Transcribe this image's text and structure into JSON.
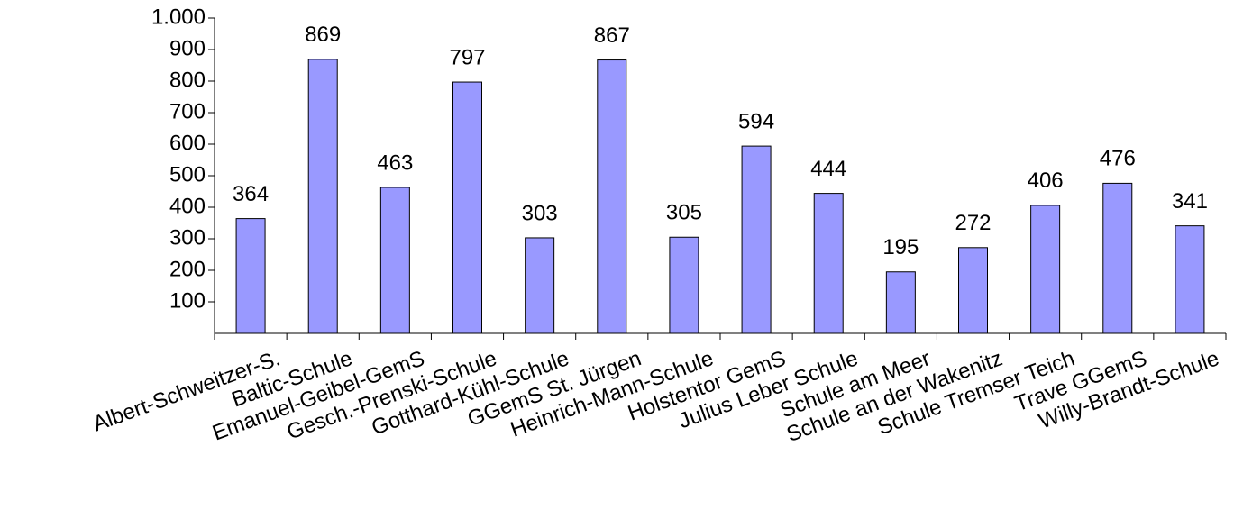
{
  "chart_data": {
    "type": "bar",
    "categories": [
      "Albert-Schweitzer-S.",
      "Baltic-Schule",
      "Emanuel-Geibel-GemS",
      "Gesch.-Prenski-Schule",
      "Gotthard-Kühl-Schule",
      "GGemS St. Jürgen",
      "Heinrich-Mann-Schule",
      "Holstentor GemS",
      "Julius Leber Schule",
      "Schule am Meer",
      "Schule an der Wakenitz",
      "Schule Tremser Teich",
      "Trave GGemS",
      "Willy-Brandt-Schule"
    ],
    "values": [
      364,
      869,
      463,
      797,
      303,
      867,
      305,
      594,
      444,
      195,
      272,
      406,
      476,
      341
    ],
    "color": "#9999ff",
    "ylim": [
      0,
      1000
    ],
    "yticks": [
      100,
      200,
      300,
      400,
      500,
      600,
      700,
      800,
      900,
      {
        "value": 1000,
        "label": "1.000"
      }
    ],
    "grid": false
  }
}
